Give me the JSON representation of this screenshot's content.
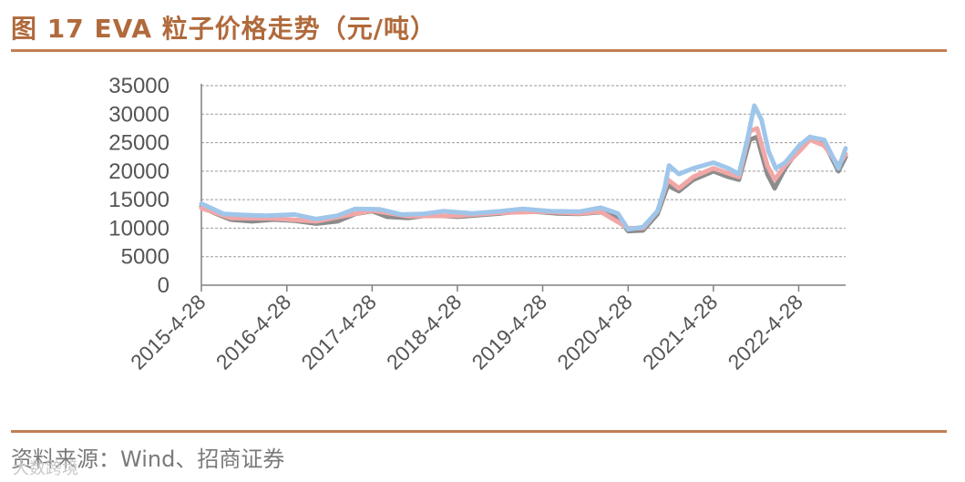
{
  "header": {
    "title": "图 17 EVA 粒子价格走势（元/吨）"
  },
  "footer": {
    "source": "资料来源：Wind、招商证券",
    "watermark": "大数跨境"
  },
  "colors": {
    "accent": "#b06a3b",
    "series_gray": "#8c8c8c",
    "series_red": "#f2a7a7",
    "series_blue": "#9fc6ea"
  },
  "chart_data": {
    "type": "line",
    "title": "图 17 EVA 粒子价格走势（元/吨）",
    "xlabel": "",
    "ylabel": "",
    "ylim": [
      0,
      35000
    ],
    "yticks": [
      0,
      5000,
      10000,
      15000,
      20000,
      25000,
      30000,
      35000
    ],
    "xlim": [
      "2015-04-28",
      "2022-11-15"
    ],
    "xticks": [
      "2015-4-28",
      "2016-4-28",
      "2017-4-28",
      "2018-4-28",
      "2019-4-28",
      "2020-4-28",
      "2021-4-28",
      "2022-4-28"
    ],
    "grid": true,
    "legend": "none",
    "series": [
      {
        "color": "#8c8c8c",
        "points": [
          [
            "2015-04-28",
            13800
          ],
          [
            "2015-06-15",
            12800
          ],
          [
            "2015-09-01",
            11500
          ],
          [
            "2015-12-01",
            11200
          ],
          [
            "2016-03-01",
            11500
          ],
          [
            "2016-06-01",
            11300
          ],
          [
            "2016-09-01",
            10800
          ],
          [
            "2016-12-01",
            11200
          ],
          [
            "2017-02-15",
            12500
          ],
          [
            "2017-04-28",
            13000
          ],
          [
            "2017-07-01",
            12000
          ],
          [
            "2017-10-01",
            11800
          ],
          [
            "2018-01-01",
            12300
          ],
          [
            "2018-04-28",
            12000
          ],
          [
            "2018-08-01",
            12300
          ],
          [
            "2018-11-01",
            12600
          ],
          [
            "2019-02-01",
            13000
          ],
          [
            "2019-04-28",
            12800
          ],
          [
            "2019-07-01",
            12600
          ],
          [
            "2019-10-01",
            12500
          ],
          [
            "2020-01-01",
            12800
          ],
          [
            "2020-03-15",
            12000
          ],
          [
            "2020-04-28",
            9500
          ],
          [
            "2020-07-01",
            9600
          ],
          [
            "2020-09-01",
            12500
          ],
          [
            "2020-10-15",
            17500
          ],
          [
            "2020-12-01",
            16500
          ],
          [
            "2021-02-01",
            18500
          ],
          [
            "2021-04-28",
            20000
          ],
          [
            "2021-07-01",
            19000
          ],
          [
            "2021-08-15",
            18500
          ],
          [
            "2021-10-01",
            25500
          ],
          [
            "2021-11-01",
            26000
          ],
          [
            "2021-12-15",
            19500
          ],
          [
            "2022-01-15",
            17000
          ],
          [
            "2022-03-01",
            20500
          ],
          [
            "2022-05-01",
            24000
          ],
          [
            "2022-06-15",
            26000
          ],
          [
            "2022-08-15",
            25000
          ],
          [
            "2022-10-15",
            20000
          ],
          [
            "2022-11-15",
            22500
          ]
        ]
      },
      {
        "color": "#f2a7a7",
        "points": [
          [
            "2015-04-28",
            13500
          ],
          [
            "2015-09-01",
            11800
          ],
          [
            "2016-03-01",
            11700
          ],
          [
            "2016-09-01",
            11200
          ],
          [
            "2017-04-28",
            13100
          ],
          [
            "2017-10-01",
            12100
          ],
          [
            "2018-04-28",
            12200
          ],
          [
            "2018-11-01",
            12700
          ],
          [
            "2019-04-28",
            12900
          ],
          [
            "2019-10-01",
            12600
          ],
          [
            "2020-01-01",
            12900
          ],
          [
            "2020-04-28",
            10000
          ],
          [
            "2020-07-01",
            10000
          ],
          [
            "2020-09-01",
            13000
          ],
          [
            "2020-10-15",
            18500
          ],
          [
            "2020-12-01",
            17000
          ],
          [
            "2021-02-01",
            19000
          ],
          [
            "2021-04-28",
            20500
          ],
          [
            "2021-08-15",
            19000
          ],
          [
            "2021-10-01",
            27000
          ],
          [
            "2021-11-01",
            27500
          ],
          [
            "2021-12-15",
            21000
          ],
          [
            "2022-01-15",
            18500
          ],
          [
            "2022-03-01",
            21000
          ],
          [
            "2022-05-01",
            23500
          ],
          [
            "2022-06-15",
            25500
          ],
          [
            "2022-08-15",
            24500
          ],
          [
            "2022-10-15",
            21000
          ],
          [
            "2022-11-15",
            23000
          ]
        ]
      },
      {
        "color": "#9fc6ea",
        "points": [
          [
            "2015-04-28",
            14300
          ],
          [
            "2015-08-01",
            12500
          ],
          [
            "2015-11-01",
            12300
          ],
          [
            "2016-02-01",
            12200
          ],
          [
            "2016-06-01",
            12400
          ],
          [
            "2016-09-01",
            11600
          ],
          [
            "2016-12-01",
            12200
          ],
          [
            "2017-02-15",
            13400
          ],
          [
            "2017-06-01",
            13300
          ],
          [
            "2017-09-01",
            12400
          ],
          [
            "2017-12-01",
            12500
          ],
          [
            "2018-03-01",
            13000
          ],
          [
            "2018-07-01",
            12600
          ],
          [
            "2018-11-01",
            13000
          ],
          [
            "2019-02-01",
            13400
          ],
          [
            "2019-06-01",
            13000
          ],
          [
            "2019-10-01",
            12900
          ],
          [
            "2020-01-01",
            13600
          ],
          [
            "2020-03-15",
            12600
          ],
          [
            "2020-04-28",
            9800
          ],
          [
            "2020-07-01",
            10200
          ],
          [
            "2020-09-01",
            13000
          ],
          [
            "2020-10-01",
            17000
          ],
          [
            "2020-10-20",
            21000
          ],
          [
            "2020-12-01",
            19500
          ],
          [
            "2021-02-01",
            20500
          ],
          [
            "2021-04-28",
            21500
          ],
          [
            "2021-07-01",
            20500
          ],
          [
            "2021-08-15",
            19500
          ],
          [
            "2021-09-20",
            25500
          ],
          [
            "2021-10-20",
            31500
          ],
          [
            "2021-11-20",
            29000
          ],
          [
            "2021-12-20",
            23500
          ],
          [
            "2022-01-20",
            20500
          ],
          [
            "2022-03-01",
            21500
          ],
          [
            "2022-05-01",
            24500
          ],
          [
            "2022-06-15",
            26000
          ],
          [
            "2022-08-15",
            25500
          ],
          [
            "2022-10-15",
            20500
          ],
          [
            "2022-11-15",
            24000
          ]
        ]
      }
    ]
  }
}
